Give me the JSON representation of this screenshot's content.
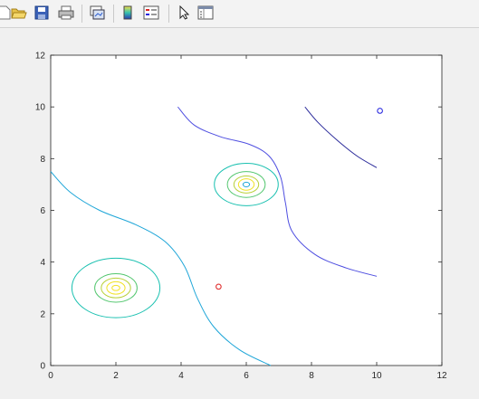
{
  "toolbar": {
    "buttons": [
      {
        "name": "new-figure-icon"
      },
      {
        "name": "open-file-icon"
      },
      {
        "name": "save-figure-icon"
      },
      {
        "name": "print-figure-icon"
      },
      {
        "name": "link-plot-icon"
      },
      {
        "name": "insert-colorbar-icon"
      },
      {
        "name": "insert-legend-icon"
      },
      {
        "name": "edit-plot-pointer-icon"
      },
      {
        "name": "property-inspector-icon"
      }
    ]
  },
  "chart_data": {
    "type": "contour",
    "title": "",
    "xlabel": "",
    "ylabel": "",
    "xlim": [
      0,
      12
    ],
    "ylim": [
      0,
      12
    ],
    "x_ticks": [
      0,
      2,
      4,
      6,
      8,
      10,
      12
    ],
    "y_ticks": [
      0,
      2,
      4,
      6,
      8,
      10,
      12
    ],
    "grid": false,
    "colors": {
      "dark_blue": "#2a2a9a",
      "blue": "#4e4ee0",
      "cyan": "#1fa6d8",
      "teal": "#19c0b0",
      "green": "#52c66e",
      "yellow_green": "#b8d038",
      "yellow": "#f1e226",
      "red_marker": "#e03030",
      "blue_marker": "#3030e0"
    },
    "contour_lines": [
      {
        "level": "dark-blue",
        "color": "#2a2a9a",
        "points": [
          [
            7.8,
            10
          ],
          [
            8.2,
            9.4
          ],
          [
            8.8,
            8.7
          ],
          [
            9.4,
            8.1
          ],
          [
            10,
            7.65
          ]
        ]
      },
      {
        "level": "blue",
        "color": "#4e4ee0",
        "points": [
          [
            3.9,
            10
          ],
          [
            4.4,
            9.3
          ],
          [
            5.2,
            8.85
          ],
          [
            6.1,
            8.55
          ],
          [
            6.7,
            8.1
          ],
          [
            7.05,
            7.3
          ],
          [
            7.2,
            6.3
          ],
          [
            7.4,
            5.2
          ],
          [
            8.1,
            4.3
          ],
          [
            9.0,
            3.8
          ],
          [
            10.0,
            3.45
          ]
        ]
      },
      {
        "level": "cyan",
        "color": "#1fa6d8",
        "points": [
          [
            0,
            7.5
          ],
          [
            0.6,
            6.7
          ],
          [
            1.5,
            6.0
          ],
          [
            2.6,
            5.45
          ],
          [
            3.5,
            4.8
          ],
          [
            4.1,
            3.85
          ],
          [
            4.5,
            2.6
          ],
          [
            5.0,
            1.5
          ],
          [
            5.8,
            0.6
          ],
          [
            6.75,
            0
          ]
        ]
      }
    ],
    "rings": [
      {
        "cx": 2.0,
        "cy": 3.0,
        "rx": 1.35,
        "ry": 1.15,
        "color": "#19c0b0"
      },
      {
        "cx": 2.0,
        "cy": 3.0,
        "rx": 0.65,
        "ry": 0.55,
        "color": "#52c66e"
      },
      {
        "cx": 2.0,
        "cy": 3.0,
        "rx": 0.45,
        "ry": 0.38,
        "color": "#b8d038"
      },
      {
        "cx": 2.0,
        "cy": 3.0,
        "rx": 0.28,
        "ry": 0.24,
        "color": "#f1e226"
      },
      {
        "cx": 2.0,
        "cy": 3.0,
        "rx": 0.12,
        "ry": 0.1,
        "color": "#f1e226"
      },
      {
        "cx": 6.0,
        "cy": 7.0,
        "rx": 0.98,
        "ry": 0.82,
        "color": "#19c0b0"
      },
      {
        "cx": 6.0,
        "cy": 7.0,
        "rx": 0.58,
        "ry": 0.5,
        "color": "#52c66e"
      },
      {
        "cx": 6.0,
        "cy": 7.0,
        "rx": 0.38,
        "ry": 0.33,
        "color": "#b8d038"
      },
      {
        "cx": 6.0,
        "cy": 7.0,
        "rx": 0.24,
        "ry": 0.22,
        "color": "#f1e226"
      },
      {
        "cx": 6.0,
        "cy": 7.0,
        "rx": 0.1,
        "ry": 0.09,
        "color": "#1fa6d8"
      }
    ],
    "markers": [
      {
        "name": "red-circle-marker",
        "x": 5.15,
        "y": 3.05,
        "color": "#e03030"
      },
      {
        "name": "blue-circle-marker",
        "x": 10.1,
        "y": 9.85,
        "color": "#3030e0"
      }
    ]
  }
}
